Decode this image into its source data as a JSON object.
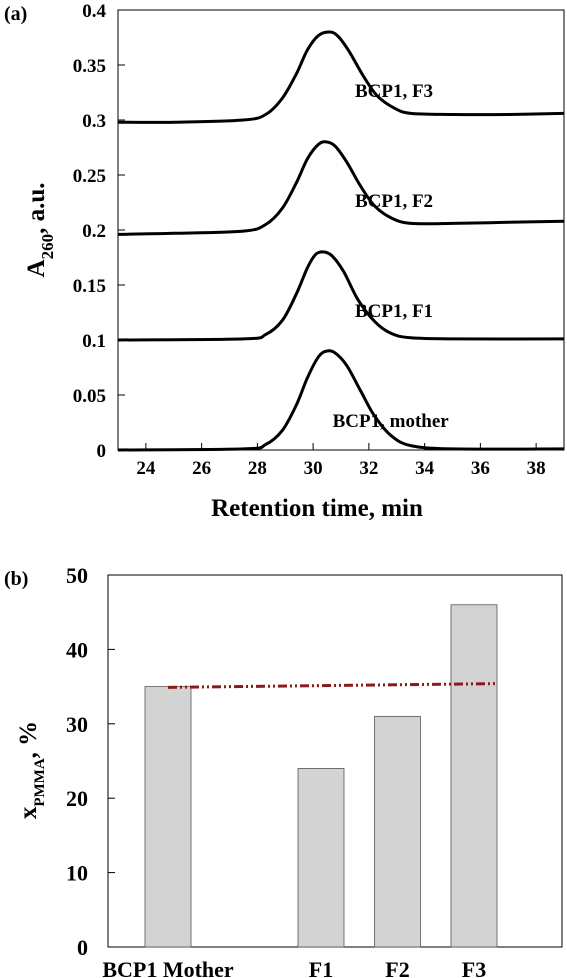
{
  "chart_data": [
    {
      "type": "line",
      "panel_label": "(a)",
      "xlabel": "Retention time, min",
      "ylabel_main": "A",
      "ylabel_sub": "260",
      "ylabel_tail": ", a.u.",
      "xlim": [
        23,
        39
      ],
      "ylim": [
        0,
        0.4
      ],
      "xticks": [
        24,
        26,
        28,
        30,
        32,
        34,
        36,
        38
      ],
      "yticks": [
        0,
        0.05,
        0.1,
        0.15,
        0.2,
        0.25,
        0.3,
        0.35,
        0.4
      ],
      "ytick_labels": [
        "0",
        "0.05",
        "0.1",
        "0.15",
        "0.2",
        "0.25",
        "0.3",
        "0.35",
        "0.4"
      ],
      "grid": false,
      "series": [
        {
          "name": "BCP1, mother",
          "label_x": 30.7,
          "label_y": 0.021,
          "points": [
            [
              23,
              0
            ],
            [
              27.5,
              0.001
            ],
            [
              28.3,
              0.005
            ],
            [
              28.9,
              0.018
            ],
            [
              29.4,
              0.041
            ],
            [
              29.8,
              0.066
            ],
            [
              30.2,
              0.085
            ],
            [
              30.5,
              0.09
            ],
            [
              30.8,
              0.088
            ],
            [
              31.2,
              0.077
            ],
            [
              31.7,
              0.054
            ],
            [
              32.2,
              0.031
            ],
            [
              32.8,
              0.013
            ],
            [
              33.5,
              0.004
            ],
            [
              35,
              0.001
            ],
            [
              39,
              0.001
            ]
          ]
        },
        {
          "name": "BCP1, F1",
          "label_x": 31.5,
          "label_y": 0.121,
          "points": [
            [
              23,
              0.1
            ],
            [
              27.5,
              0.101
            ],
            [
              28.3,
              0.105
            ],
            [
              28.9,
              0.118
            ],
            [
              29.4,
              0.142
            ],
            [
              29.8,
              0.166
            ],
            [
              30.1,
              0.178
            ],
            [
              30.4,
              0.18
            ],
            [
              30.7,
              0.176
            ],
            [
              31.1,
              0.162
            ],
            [
              31.6,
              0.137
            ],
            [
              32.2,
              0.117
            ],
            [
              32.8,
              0.106
            ],
            [
              33.5,
              0.102
            ],
            [
              35,
              0.101
            ],
            [
              39,
              0.101
            ]
          ]
        },
        {
          "name": "BCP1, F2",
          "label_x": 31.5,
          "label_y": 0.221,
          "points": [
            [
              23,
              0.196
            ],
            [
              25,
              0.197
            ],
            [
              27.5,
              0.199
            ],
            [
              28.3,
              0.205
            ],
            [
              28.9,
              0.22
            ],
            [
              29.4,
              0.243
            ],
            [
              29.8,
              0.265
            ],
            [
              30.2,
              0.278
            ],
            [
              30.5,
              0.28
            ],
            [
              30.8,
              0.276
            ],
            [
              31.2,
              0.262
            ],
            [
              31.7,
              0.24
            ],
            [
              32.2,
              0.222
            ],
            [
              32.8,
              0.211
            ],
            [
              33.5,
              0.206
            ],
            [
              35,
              0.206
            ],
            [
              37,
              0.207
            ],
            [
              39,
              0.208
            ]
          ]
        },
        {
          "name": "BCP1, F3",
          "label_x": 31.5,
          "label_y": 0.321,
          "points": [
            [
              23,
              0.298
            ],
            [
              25,
              0.298
            ],
            [
              27.5,
              0.3
            ],
            [
              28.3,
              0.305
            ],
            [
              28.9,
              0.32
            ],
            [
              29.4,
              0.342
            ],
            [
              29.8,
              0.364
            ],
            [
              30.2,
              0.377
            ],
            [
              30.6,
              0.38
            ],
            [
              30.9,
              0.376
            ],
            [
              31.3,
              0.362
            ],
            [
              31.8,
              0.34
            ],
            [
              32.3,
              0.322
            ],
            [
              32.9,
              0.311
            ],
            [
              33.5,
              0.306
            ],
            [
              35,
              0.305
            ],
            [
              37,
              0.305
            ],
            [
              39,
              0.306
            ]
          ]
        }
      ]
    },
    {
      "type": "bar",
      "panel_label": "(b)",
      "ylabel_main": "x",
      "ylabel_sub": "PMMA",
      "ylabel_tail": ", %",
      "ylim": [
        0,
        50
      ],
      "yticks": [
        0,
        10,
        20,
        30,
        40,
        50
      ],
      "categories": [
        "BCP1 Mother",
        "F1",
        "F2",
        "F3"
      ],
      "values": [
        35,
        24,
        31,
        46
      ],
      "category_slots": [
        0,
        2,
        3,
        4
      ],
      "bar_color": "#d3d3d3",
      "reference_line": {
        "style": "dash-dot-dot",
        "color": "#8b1a1a",
        "from": [
          0,
          34.9
        ],
        "to": [
          4.3,
          35.4
        ]
      },
      "grid": false
    }
  ]
}
